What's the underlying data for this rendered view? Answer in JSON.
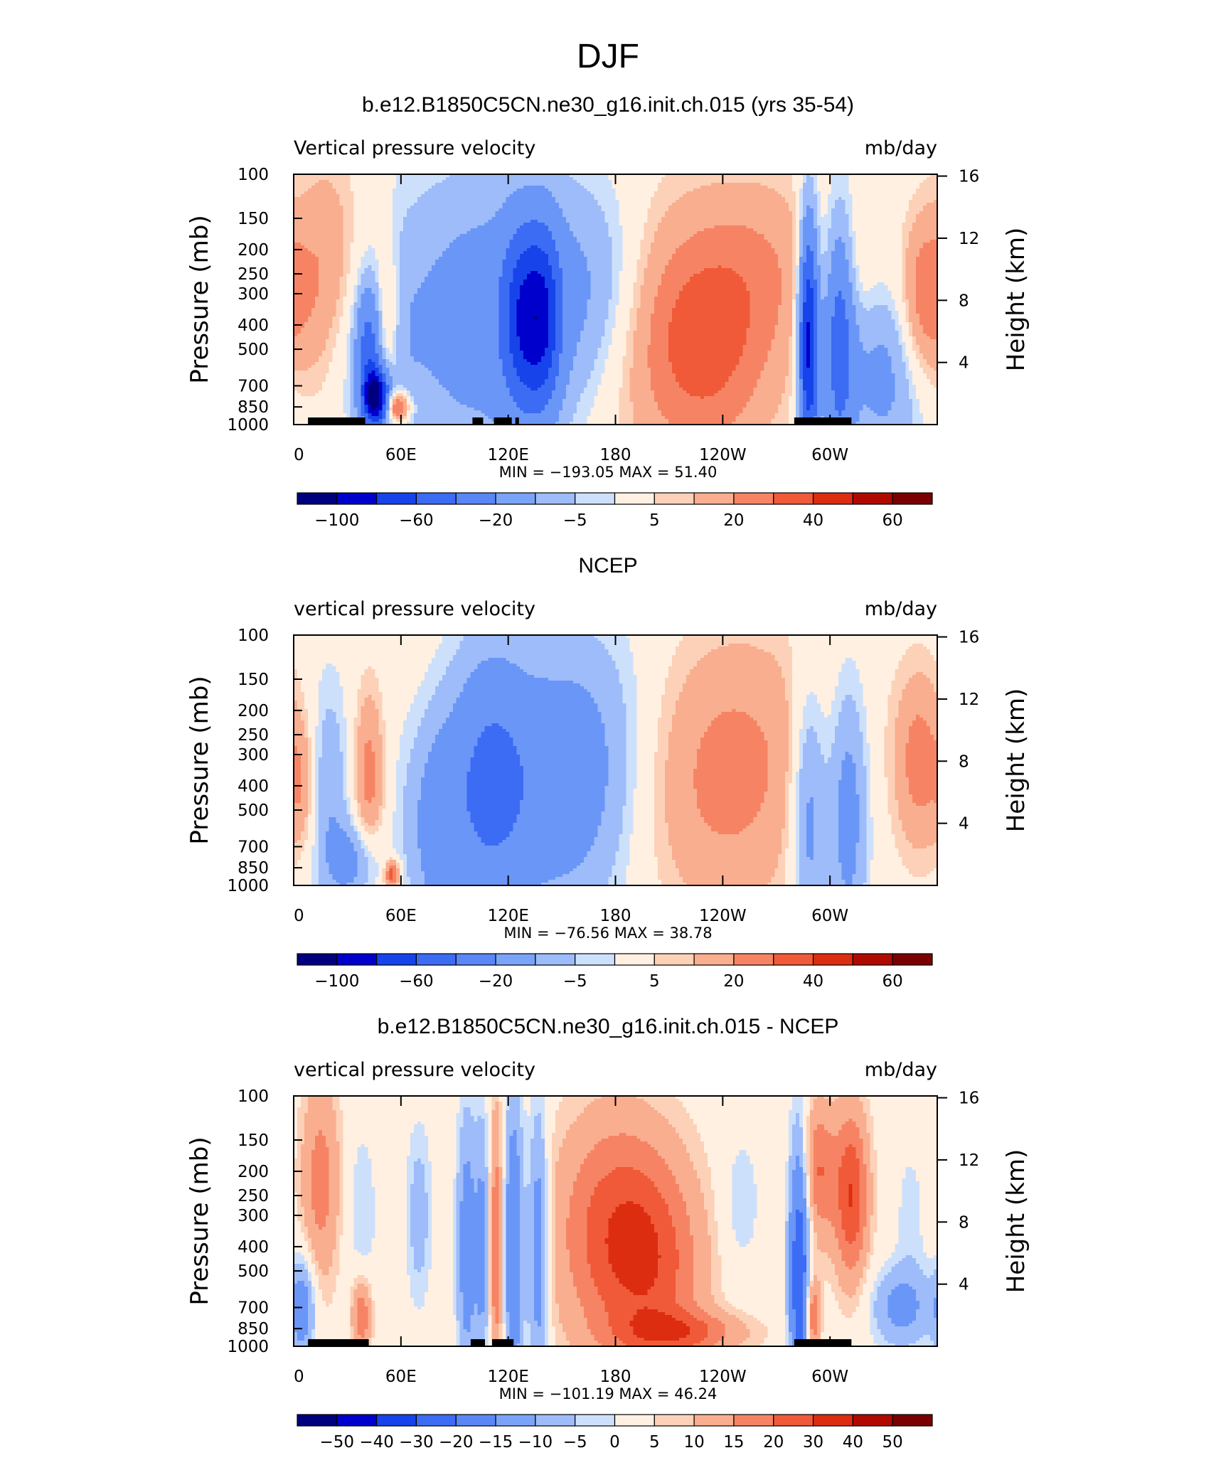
{
  "figure_title": "DJF",
  "chart_data": [
    {
      "type": "heatmap",
      "title": "b.e12.B1850C5CN.ne30_g16.init.ch.015 (yrs 35-54)",
      "variable_label": "Vertical pressure velocity",
      "units": "mb/day",
      "ylabel": "Pressure (mb)",
      "right_ylabel": "Height (km)",
      "x_ticks": [
        "0",
        "60E",
        "120E",
        "180",
        "120W",
        "60W"
      ],
      "y_ticks": [
        "100",
        "150",
        "200",
        "250",
        "300",
        "400",
        "500",
        "700",
        "850",
        "1000"
      ],
      "right_ticks": [
        "16",
        "12",
        "8",
        "4"
      ],
      "stats": "MIN = −193.05   MAX =   51.40",
      "colorbar_labels": [
        "−100",
        "−60",
        "−20",
        "−5",
        "5",
        "20",
        "40",
        "60"
      ],
      "blobs": [
        {
          "x": 20,
          "p": 300,
          "w": 15,
          "h": 2.2,
          "v": 30
        },
        {
          "x": 30,
          "p": 450,
          "w": 14,
          "h": 2.0,
          "v": -18
        },
        {
          "x": 42,
          "p": 500,
          "w": 5,
          "h": 1.5,
          "v": -40
        },
        {
          "x": 52,
          "p": 380,
          "w": 5,
          "h": 1.7,
          "v": 20
        },
        {
          "x": 46,
          "p": 780,
          "w": 5,
          "h": 1.2,
          "v": -100
        },
        {
          "x": 58,
          "p": 850,
          "w": 5,
          "h": 1.1,
          "v": 45
        },
        {
          "x": 62,
          "p": 500,
          "w": 8,
          "h": 2.0,
          "v": -4
        },
        {
          "x": 110,
          "p": 380,
          "w": 42,
          "h": 2.6,
          "v": -30
        },
        {
          "x": 128,
          "p": 380,
          "w": 8,
          "h": 1.8,
          "v": -50
        },
        {
          "x": 140,
          "p": 380,
          "w": 7,
          "h": 1.8,
          "v": -50
        },
        {
          "x": 170,
          "p": 300,
          "w": 22,
          "h": 2.0,
          "v": -20
        },
        {
          "x": 215,
          "p": 430,
          "w": 38,
          "h": 2.3,
          "v": 30
        },
        {
          "x": 235,
          "p": 550,
          "w": 22,
          "h": 2.0,
          "v": 10
        },
        {
          "x": 265,
          "p": 220,
          "w": 25,
          "h": 1.8,
          "v": 12
        },
        {
          "x": 288,
          "p": 450,
          "w": 4,
          "h": 2.2,
          "v": -90
        },
        {
          "x": 305,
          "p": 450,
          "w": 6,
          "h": 2.2,
          "v": -50
        },
        {
          "x": 330,
          "p": 600,
          "w": 18,
          "h": 2.0,
          "v": -25
        },
        {
          "x": 352,
          "p": 320,
          "w": 10,
          "h": 1.7,
          "v": 30
        },
        {
          "x": 318,
          "p": 260,
          "w": 12,
          "h": 1.5,
          "v": 8
        }
      ],
      "land_segments": [
        [
          8,
          33
        ],
        [
          28,
          40
        ],
        [
          100,
          106
        ],
        [
          112,
          122
        ],
        [
          124,
          126
        ],
        [
          280,
          312
        ]
      ]
    },
    {
      "type": "heatmap",
      "title": "NCEP",
      "variable_label": "vertical pressure velocity",
      "units": "mb/day",
      "ylabel": "Pressure (mb)",
      "right_ylabel": "Height (km)",
      "x_ticks": [
        "0",
        "60E",
        "120E",
        "180",
        "120W",
        "60W"
      ],
      "y_ticks": [
        "100",
        "150",
        "200",
        "250",
        "300",
        "400",
        "500",
        "700",
        "850",
        "1000"
      ],
      "right_ticks": [
        "16",
        "12",
        "8",
        "4"
      ],
      "stats": "MIN =  −76.56   MAX =   38.78",
      "colorbar_labels": [
        "−100",
        "−60",
        "−20",
        "−5",
        "5",
        "20",
        "40",
        "60"
      ],
      "blobs": [
        {
          "x": 20,
          "p": 450,
          "w": 8,
          "h": 2.2,
          "v": -18
        },
        {
          "x": 42,
          "p": 380,
          "w": 6,
          "h": 1.8,
          "v": 25
        },
        {
          "x": 35,
          "p": 800,
          "w": 10,
          "h": 1.3,
          "v": -25
        },
        {
          "x": 62,
          "p": 500,
          "w": 8,
          "h": 2.0,
          "v": -5
        },
        {
          "x": 80,
          "p": 600,
          "w": 10,
          "h": 2.0,
          "v": -25
        },
        {
          "x": 108,
          "p": 400,
          "w": 16,
          "h": 2.4,
          "v": -38
        },
        {
          "x": 150,
          "p": 400,
          "w": 28,
          "h": 2.4,
          "v": -30
        },
        {
          "x": 175,
          "p": 200,
          "w": 28,
          "h": 2.2,
          "v": -6
        },
        {
          "x": 240,
          "p": 400,
          "w": 35,
          "h": 2.4,
          "v": 22
        },
        {
          "x": 265,
          "p": 200,
          "w": 40,
          "h": 2.0,
          "v": 5
        },
        {
          "x": 288,
          "p": 500,
          "w": 7,
          "h": 2.4,
          "v": -30
        },
        {
          "x": 310,
          "p": 500,
          "w": 8,
          "h": 2.4,
          "v": -30
        },
        {
          "x": 350,
          "p": 320,
          "w": 10,
          "h": 1.8,
          "v": 25
        },
        {
          "x": 5,
          "p": 400,
          "w": 5,
          "h": 1.5,
          "v": 15
        },
        {
          "x": 55,
          "p": 900,
          "w": 3,
          "h": 1.1,
          "v": 40
        }
      ],
      "land_segments": []
    },
    {
      "type": "heatmap",
      "title": "b.e12.B1850C5CN.ne30_g16.init.ch.015 - NCEP",
      "variable_label": "vertical pressure velocity",
      "units": "mb/day",
      "ylabel": "Pressure (mb)",
      "right_ylabel": "Height (km)",
      "x_ticks": [
        "0",
        "60E",
        "120E",
        "180",
        "120W",
        "60W"
      ],
      "y_ticks": [
        "100",
        "150",
        "200",
        "250",
        "300",
        "400",
        "500",
        "700",
        "850",
        "1000"
      ],
      "right_ticks": [
        "16",
        "12",
        "8",
        "4"
      ],
      "stats": "MIN = −101.19   MAX =   46.24",
      "colorbar_labels": [
        "−50",
        "−40",
        "−30",
        "−20",
        "−15",
        "−10",
        "−5",
        "0",
        "5",
        "10",
        "15",
        "20",
        "30",
        "40",
        "50"
      ],
      "blobs": [
        {
          "x": 15,
          "p": 220,
          "w": 8,
          "h": 2.0,
          "v": 25
        },
        {
          "x": 38,
          "p": 300,
          "w": 6,
          "h": 1.8,
          "v": -10
        },
        {
          "x": 5,
          "p": 700,
          "w": 5,
          "h": 1.4,
          "v": -30
        },
        {
          "x": 38,
          "p": 750,
          "w": 4,
          "h": 1.3,
          "v": 30
        },
        {
          "x": 70,
          "p": 300,
          "w": 5,
          "h": 1.8,
          "v": -15
        },
        {
          "x": 97,
          "p": 400,
          "w": 4,
          "h": 2.4,
          "v": -30
        },
        {
          "x": 113,
          "p": 400,
          "w": 3,
          "h": 2.6,
          "v": 30
        },
        {
          "x": 106,
          "p": 400,
          "w": 3,
          "h": 2.4,
          "v": -25
        },
        {
          "x": 123,
          "p": 400,
          "w": 4,
          "h": 2.6,
          "v": -40
        },
        {
          "x": 137,
          "p": 400,
          "w": 4,
          "h": 2.4,
          "v": -35
        },
        {
          "x": 180,
          "p": 350,
          "w": 25,
          "h": 2.2,
          "v": 35
        },
        {
          "x": 205,
          "p": 520,
          "w": 20,
          "h": 2.0,
          "v": 20
        },
        {
          "x": 220,
          "p": 880,
          "w": 25,
          "h": 1.15,
          "v": 25
        },
        {
          "x": 250,
          "p": 270,
          "w": 8,
          "h": 1.6,
          "v": -10
        },
        {
          "x": 283,
          "p": 500,
          "w": 4,
          "h": 2.4,
          "v": -60
        },
        {
          "x": 293,
          "p": 200,
          "w": 7,
          "h": 1.6,
          "v": 30
        },
        {
          "x": 312,
          "p": 250,
          "w": 7,
          "h": 1.8,
          "v": 40
        },
        {
          "x": 290,
          "p": 750,
          "w": 3,
          "h": 1.3,
          "v": 35
        },
        {
          "x": 340,
          "p": 700,
          "w": 12,
          "h": 1.3,
          "v": -25
        },
        {
          "x": 345,
          "p": 300,
          "w": 6,
          "h": 1.6,
          "v": -8
        }
      ],
      "land_segments": [
        [
          8,
          33
        ],
        [
          26,
          42
        ],
        [
          99,
          107
        ],
        [
          111,
          123
        ],
        [
          280,
          312
        ]
      ]
    }
  ]
}
